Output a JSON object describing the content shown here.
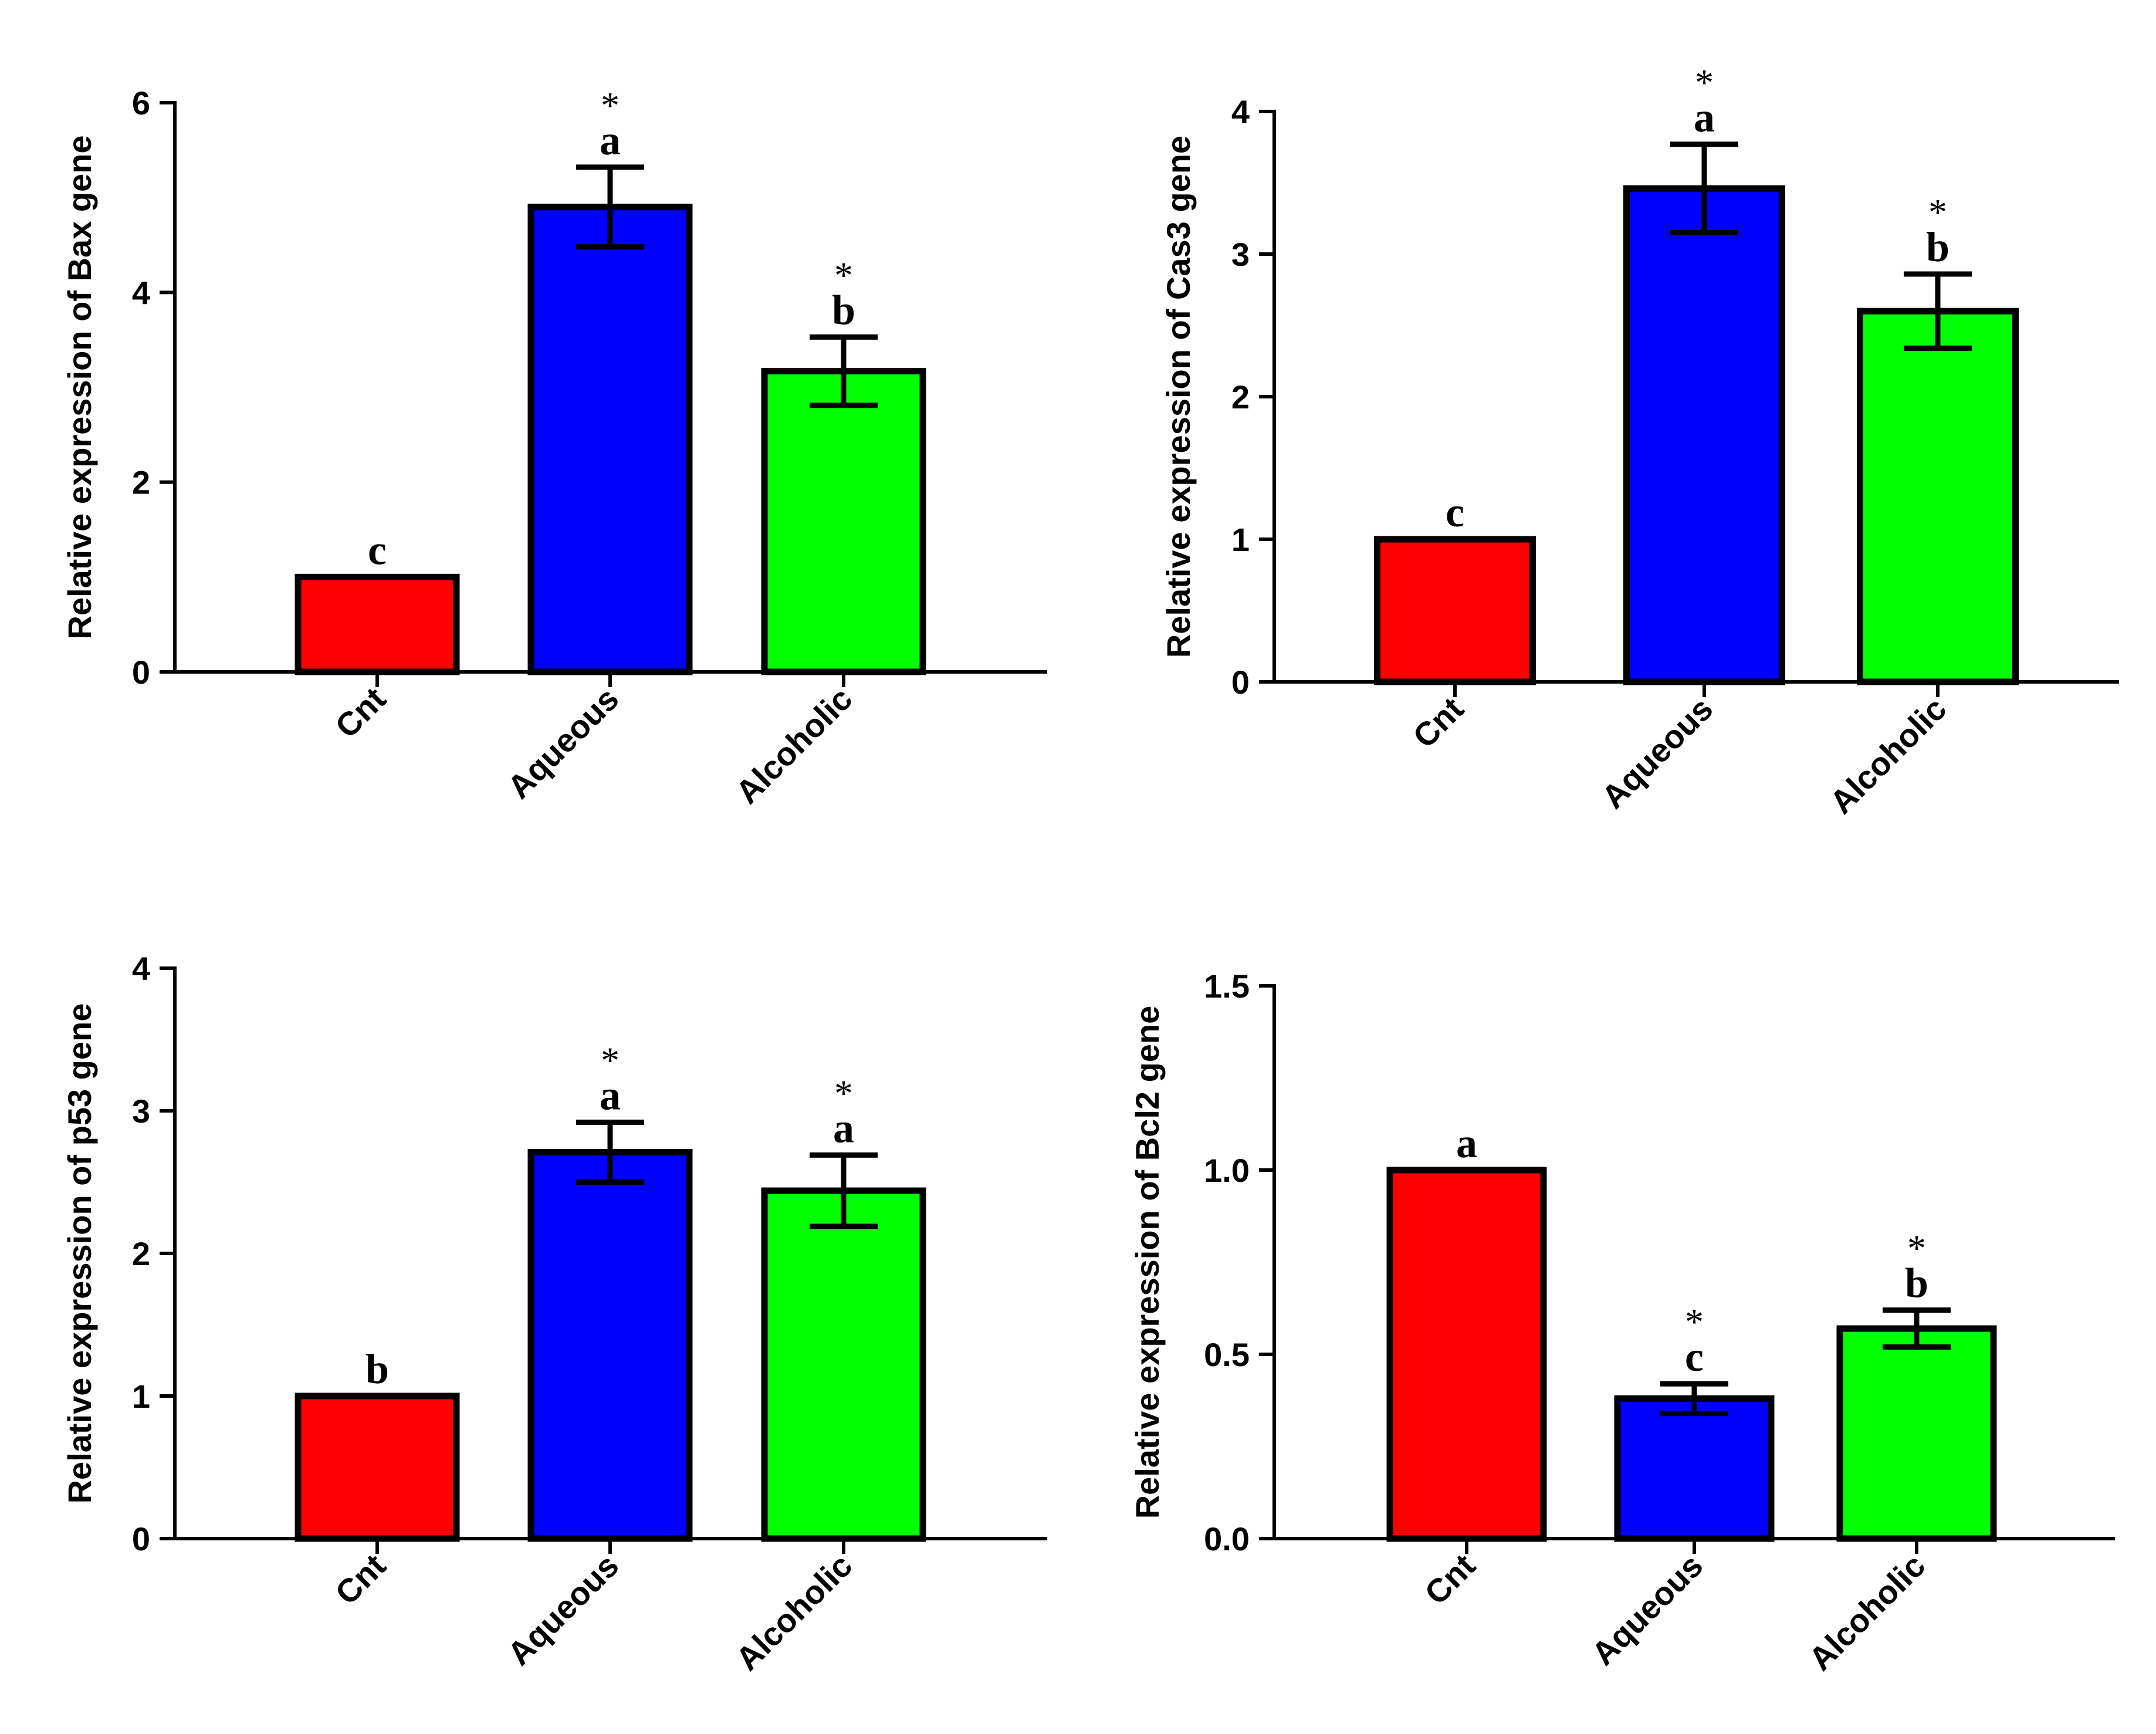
{
  "colors": {
    "Cnt": "#ff0000",
    "Aqueous": "#0000ff",
    "Alcoholic": "#00ff00"
  },
  "chart_data": [
    {
      "type": "bar",
      "id": "bax",
      "title": "",
      "xlabel": "",
      "ylabel": "Relative expression of Bax gene",
      "categories": [
        "Cnt",
        "Aqueous",
        "Alcoholic"
      ],
      "values": [
        1.0,
        4.9,
        3.17
      ],
      "errors": [
        0.0,
        0.42,
        0.36
      ],
      "letters": [
        "c",
        "a",
        "b"
      ],
      "stars": [
        "",
        "*",
        "*"
      ],
      "ylim": [
        0,
        6
      ],
      "yticks": [
        0,
        2,
        4,
        6
      ],
      "ytick_labels": [
        "0",
        "2",
        "4",
        "6"
      ]
    },
    {
      "type": "bar",
      "id": "cas3",
      "title": "",
      "xlabel": "",
      "ylabel": "Relative expression of Cas3 gene",
      "categories": [
        "Cnt",
        "Aqueous",
        "Alcoholic"
      ],
      "values": [
        1.0,
        3.46,
        2.6
      ],
      "errors": [
        0.0,
        0.31,
        0.26
      ],
      "letters": [
        "c",
        "a",
        "b"
      ],
      "stars": [
        "",
        "*",
        "*"
      ],
      "ylim": [
        0,
        4
      ],
      "yticks": [
        0,
        1,
        2,
        3,
        4
      ],
      "ytick_labels": [
        "0",
        "1",
        "2",
        "3",
        "4"
      ]
    },
    {
      "type": "bar",
      "id": "p53",
      "title": "",
      "xlabel": "",
      "ylabel": "Relative expression of p53 gene",
      "categories": [
        "Cnt",
        "Aqueous",
        "Alcoholic"
      ],
      "values": [
        1.0,
        2.71,
        2.44
      ],
      "errors": [
        0.0,
        0.21,
        0.25
      ],
      "letters": [
        "b",
        "a",
        "a"
      ],
      "stars": [
        "",
        "*",
        "*"
      ],
      "ylim": [
        0,
        4
      ],
      "yticks": [
        0,
        1,
        2,
        3,
        4
      ],
      "ytick_labels": [
        "0",
        "1",
        "2",
        "3",
        "4"
      ]
    },
    {
      "type": "bar",
      "id": "bcl2",
      "title": "",
      "xlabel": "",
      "ylabel": "Relative expression of Bcl2 gene",
      "categories": [
        "Cnt",
        "Aqueous",
        "Alcoholic"
      ],
      "values": [
        1.0,
        0.38,
        0.57
      ],
      "errors": [
        0.0,
        0.04,
        0.05
      ],
      "letters": [
        "a",
        "c",
        "b"
      ],
      "stars": [
        "",
        "*",
        "*"
      ],
      "ylim": [
        0,
        1.5
      ],
      "yticks": [
        0,
        0.5,
        1.0,
        1.5
      ],
      "ytick_labels": [
        "0.0",
        "0.5",
        "1.0",
        "1.5"
      ]
    }
  ]
}
